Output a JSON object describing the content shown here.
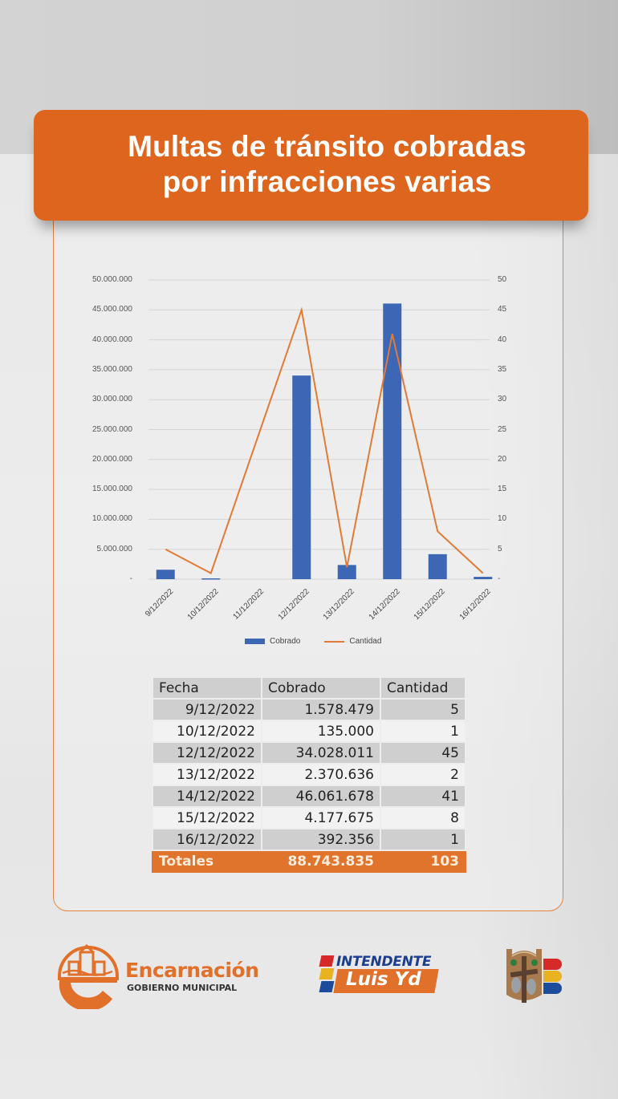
{
  "header": {
    "title_line1": "Multas de tránsito cobradas",
    "title_line2": "por infracciones varias",
    "banner_color": "#dd651d"
  },
  "chart_data": {
    "type": "bar+line",
    "title": "",
    "categories": [
      "9/12/2022",
      "10/12/2022",
      "11/12/2022",
      "12/12/2022",
      "13/12/2022",
      "14/12/2022",
      "15/12/2022",
      "16/12/2022"
    ],
    "series": [
      {
        "name": "Cobrado",
        "type": "bar",
        "axis": "left",
        "color": "#3d66b5",
        "values": [
          1578479,
          135000,
          0,
          34028011,
          2370636,
          46061678,
          4177675,
          392356
        ]
      },
      {
        "name": "Cantidad",
        "type": "line",
        "axis": "right",
        "color": "#e07a35",
        "values": [
          5,
          1,
          null,
          45,
          2,
          41,
          8,
          1
        ]
      }
    ],
    "left_axis": {
      "ylim": [
        0,
        50000000
      ],
      "ticks": [
        "-",
        "5.000.000",
        "10.000.000",
        "15.000.000",
        "20.000.000",
        "25.000.000",
        "30.000.000",
        "35.000.000",
        "40.000.000",
        "45.000.000",
        "50.000.000"
      ]
    },
    "right_axis": {
      "ylim": [
        0,
        50
      ],
      "ticks": [
        "-",
        "5",
        "10",
        "15",
        "20",
        "25",
        "30",
        "35",
        "40",
        "45",
        "50"
      ]
    },
    "xlabel": "",
    "ylabel": "",
    "grid": true,
    "legend_position": "bottom"
  },
  "legend": {
    "bar_label": "Cobrado",
    "line_label": "Cantidad"
  },
  "table": {
    "headers": [
      "Fecha",
      "Cobrado",
      "Cantidad"
    ],
    "rows": [
      [
        "9/12/2022",
        "1.578.479",
        "5"
      ],
      [
        "10/12/2022",
        "135.000",
        "1"
      ],
      [
        "12/12/2022",
        "34.028.011",
        "45"
      ],
      [
        "13/12/2022",
        "2.370.636",
        "2"
      ],
      [
        "14/12/2022",
        "46.061.678",
        "41"
      ],
      [
        "15/12/2022",
        "4.177.675",
        "8"
      ],
      [
        "16/12/2022",
        "392.356",
        "1"
      ]
    ],
    "totals": {
      "label": "Totales",
      "cobrado": "88.743.835",
      "cantidad": "103"
    }
  },
  "footer": {
    "encarnacion": {
      "name": "Encarnación",
      "subtitle": "GOBIERNO MUNICIPAL"
    },
    "intendente": {
      "line1": "INTENDENTE",
      "line2": "Luis Yd"
    }
  }
}
